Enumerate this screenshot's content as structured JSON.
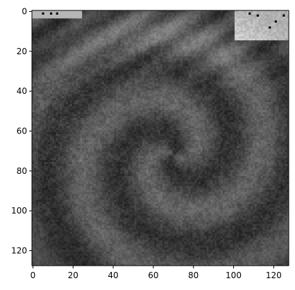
{
  "chart_data": {
    "type": "heatmap",
    "colormap": "gray",
    "xlim": [
      -0.5,
      127.5
    ],
    "ylim": [
      127.5,
      -0.5
    ],
    "y_inverted": true,
    "grid": false,
    "title": "",
    "xlabel": "",
    "ylabel": "",
    "x_ticks": [
      0,
      20,
      40,
      60,
      80,
      100,
      120
    ],
    "x_tick_labels": [
      "0",
      "20",
      "40",
      "60",
      "80",
      "100",
      "120"
    ],
    "y_ticks": [
      0,
      20,
      40,
      60,
      80,
      100,
      120
    ],
    "y_tick_labels": [
      "0",
      "20",
      "40",
      "60",
      "80",
      "100",
      "120"
    ],
    "image_size": [
      128,
      128
    ],
    "content": "grayscale satellite image of a cyclonic cloud swirl",
    "eye_center_data_units": [
      70,
      72
    ],
    "frame_color": "#000000"
  }
}
